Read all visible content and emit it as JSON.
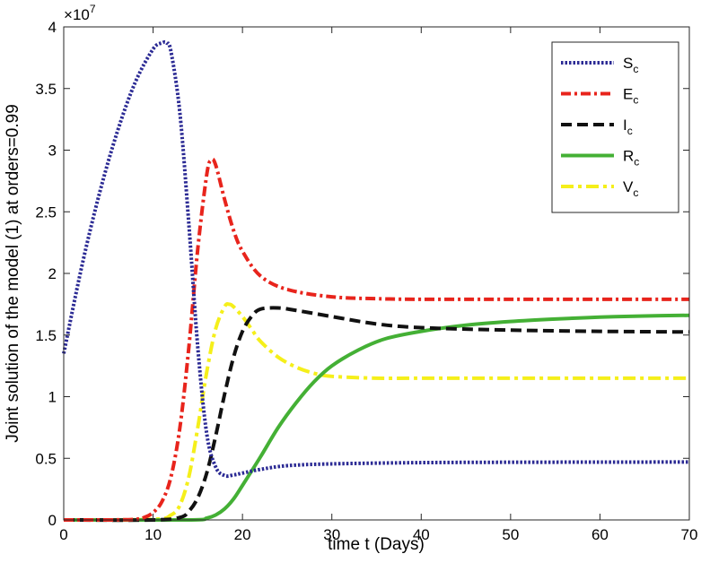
{
  "chart_data": {
    "type": "line",
    "xlabel": "time t (Days)",
    "ylabel": "Joint solution of the model (1) at orders=0.99",
    "xlim": [
      0,
      70
    ],
    "ylim": [
      0,
      40000000
    ],
    "xticks": [
      0,
      10,
      20,
      30,
      40,
      50,
      60,
      70
    ],
    "xtick_labels": [
      "0",
      "10",
      "20",
      "30",
      "40",
      "50",
      "60",
      "70"
    ],
    "yticks": [
      0,
      5000000,
      10000000,
      15000000,
      20000000,
      25000000,
      30000000,
      35000000,
      40000000
    ],
    "ytick_labels": [
      "0",
      "0.5",
      "1",
      "1.5",
      "2",
      "2.5",
      "3",
      "3.5",
      "4"
    ],
    "y_multiplier": {
      "base": "10",
      "exponent": "7"
    },
    "grid": false,
    "legend_position": "top-right",
    "series": [
      {
        "name": "S",
        "subscript": "c",
        "color": "#2b2a94",
        "dash": "dotted",
        "x": [
          0,
          2,
          4,
          6,
          8,
          10,
          11,
          11.5,
          12,
          13,
          14,
          15,
          16,
          17,
          18,
          19,
          20,
          22,
          25,
          30,
          40,
          50,
          60,
          70
        ],
        "y": [
          13500000,
          20500000,
          26500000,
          31500000,
          35500000,
          38200000,
          38700000,
          38700000,
          38000000,
          33000000,
          24000000,
          14000000,
          7000000,
          4300000,
          3600000,
          3650000,
          3800000,
          4100000,
          4400000,
          4550000,
          4650000,
          4680000,
          4690000,
          4700000
        ]
      },
      {
        "name": "E",
        "subscript": "c",
        "color": "#e8241c",
        "dash": "dashdot",
        "x": [
          0,
          5,
          8,
          9,
          10,
          11,
          12,
          13,
          14,
          15,
          16,
          16.5,
          17,
          18,
          19,
          20,
          22,
          25,
          30,
          35,
          40,
          50,
          60,
          70
        ],
        "y": [
          0,
          0,
          50000,
          200000,
          600000,
          1500000,
          3500000,
          7500000,
          14000000,
          22000000,
          28000000,
          29200000,
          28800000,
          26000000,
          23500000,
          21800000,
          19800000,
          18700000,
          18100000,
          17950000,
          17900000,
          17900000,
          17900000,
          17900000
        ]
      },
      {
        "name": "I",
        "subscript": "c",
        "color": "#111111",
        "dash": "dashed",
        "x": [
          0,
          10,
          13,
          14,
          15,
          16,
          17,
          18,
          19,
          20,
          21,
          22,
          24,
          26,
          30,
          35,
          40,
          50,
          60,
          70
        ],
        "y": [
          0,
          0,
          200000,
          700000,
          1800000,
          3800000,
          6800000,
          10200000,
          13200000,
          15300000,
          16500000,
          17100000,
          17200000,
          17000000,
          16500000,
          15900000,
          15600000,
          15400000,
          15300000,
          15250000
        ]
      },
      {
        "name": "R",
        "subscript": "c",
        "color": "#44b035",
        "dash": "solid",
        "x": [
          0,
          14,
          16,
          17,
          18,
          19,
          20,
          22,
          24,
          26,
          28,
          30,
          33,
          36,
          40,
          45,
          50,
          55,
          60,
          65,
          70
        ],
        "y": [
          0,
          0,
          150000,
          400000,
          900000,
          1700000,
          2800000,
          5100000,
          7500000,
          9500000,
          11200000,
          12500000,
          13800000,
          14700000,
          15300000,
          15800000,
          16100000,
          16300000,
          16450000,
          16550000,
          16600000
        ]
      },
      {
        "name": "V",
        "subscript": "c",
        "color": "#f5ef1a",
        "dash": "dashdotlong",
        "x": [
          0,
          10,
          12,
          13,
          14,
          15,
          16,
          17,
          18,
          18.5,
          19,
          20,
          21,
          22,
          24,
          26,
          28,
          30,
          35,
          40,
          50,
          60,
          70
        ],
        "y": [
          0,
          50000,
          400000,
          1200000,
          3500000,
          7500000,
          12000000,
          15500000,
          17300000,
          17500000,
          17300000,
          16500000,
          15500000,
          14500000,
          13200000,
          12400000,
          11900000,
          11650000,
          11500000,
          11500000,
          11500000,
          11500000,
          11500000
        ]
      }
    ]
  }
}
